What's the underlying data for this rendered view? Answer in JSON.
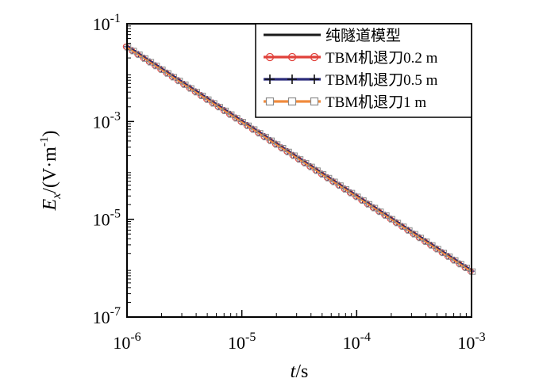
{
  "chart_data": {
    "type": "line",
    "xscale": "log",
    "yscale": "log",
    "xlim": [
      1e-06,
      0.001
    ],
    "ylim": [
      1e-07,
      0.1
    ],
    "x_ticks": [
      {
        "value": 1e-06,
        "base": "10",
        "exp": "-6"
      },
      {
        "value": 1e-05,
        "base": "10",
        "exp": "-5"
      },
      {
        "value": 0.0001,
        "base": "10",
        "exp": "-4"
      },
      {
        "value": 0.001,
        "base": "10",
        "exp": "-3"
      }
    ],
    "y_ticks": [
      {
        "value": 0.1,
        "base": "10",
        "exp": "-1"
      },
      {
        "value": 0.001,
        "base": "10",
        "exp": "-3"
      },
      {
        "value": 1e-05,
        "base": "10",
        "exp": "-5"
      },
      {
        "value": 1e-07,
        "base": "10",
        "exp": "-7"
      }
    ],
    "xlabel": {
      "italic": "t",
      "rest": "/s"
    },
    "ylabel": {
      "italic": "E",
      "sub": "x",
      "rest_a": "/(V·m",
      "sup": "-1",
      "rest_b": ")"
    },
    "legend_position": "top-right",
    "series": [
      {
        "name": "纯隧道模型",
        "color": "#1a1a1a",
        "marker": "none",
        "x": [
          1e-06,
          0.001
        ],
        "y": [
          0.035,
          9e-07
        ]
      },
      {
        "name": "TBM机退刀0.2 m",
        "color": "#e0403a",
        "marker": "circle",
        "x": [
          1e-06,
          0.001
        ],
        "y": [
          0.034,
          8.7e-07
        ]
      },
      {
        "name": "TBM机退刀0.5 m",
        "color": "#2b2b7a",
        "marker": "plus",
        "x": [
          1e-06,
          0.001
        ],
        "y": [
          0.034,
          8.7e-07
        ]
      },
      {
        "name": "TBM机退刀1 m",
        "color": "#f08a3c",
        "marker": "square",
        "x": [
          1e-06,
          0.001
        ],
        "y": [
          0.033,
          8.5e-07
        ]
      }
    ]
  }
}
